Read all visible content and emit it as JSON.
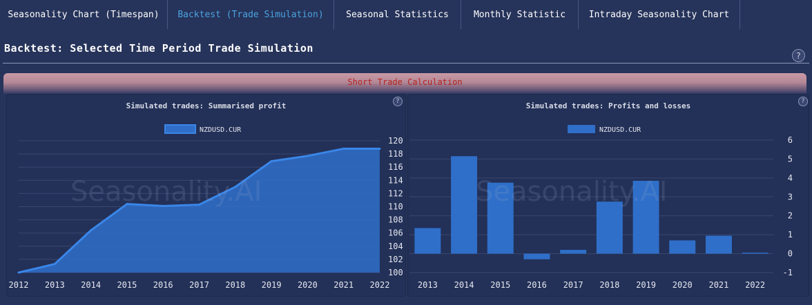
{
  "tabs": [
    {
      "label": "Seasonality Chart (Timespan)",
      "active": false
    },
    {
      "label": "Backtest (Trade Simulation)",
      "active": true
    },
    {
      "label": "Seasonal Statistics",
      "active": false
    },
    {
      "label": "Monthly Statistic",
      "active": false
    },
    {
      "label": "Intraday Seasonality Chart",
      "active": false
    }
  ],
  "section_title": "Backtest: Selected Time Period Trade Simulation",
  "help_symbol": "?",
  "banner_text": "Short Trade Calculation",
  "watermark": "Seasonality.AI",
  "colors": {
    "series": "#2f6fc9",
    "series_line": "#3a86e8",
    "grid": "#3a4770",
    "banner_text": "#b3231f",
    "active_tab": "#4aa3df"
  },
  "chart_data": [
    {
      "type": "area",
      "title": "Simulated trades: Summarised profit",
      "categories": [
        "2012",
        "2013",
        "2014",
        "2015",
        "2016",
        "2017",
        "2018",
        "2019",
        "2020",
        "2021",
        "2022"
      ],
      "series": [
        {
          "name": "NZDUSD.CUR",
          "values": [
            100,
            101.3,
            106.4,
            110.4,
            110.1,
            110.3,
            113.0,
            116.9,
            117.7,
            118.8,
            118.8
          ]
        }
      ],
      "ylim": [
        100,
        120
      ],
      "yticks": [
        100,
        102,
        104,
        106,
        108,
        110,
        112,
        114,
        116,
        118,
        120
      ],
      "grid": true,
      "legend": "top-center"
    },
    {
      "type": "bar",
      "title": "Simulated trades: Profits and losses",
      "categories": [
        "2013",
        "2014",
        "2015",
        "2016",
        "2017",
        "2018",
        "2019",
        "2020",
        "2021",
        "2022"
      ],
      "series": [
        {
          "name": "NZDUSD.CUR",
          "values": [
            1.35,
            5.15,
            3.75,
            -0.3,
            0.2,
            2.75,
            3.85,
            0.7,
            0.95,
            0.05
          ]
        }
      ],
      "ylim": [
        -1,
        6
      ],
      "yticks": [
        -1,
        0,
        1,
        2,
        3,
        4,
        5,
        6
      ],
      "grid": true,
      "legend": "top-center"
    }
  ]
}
